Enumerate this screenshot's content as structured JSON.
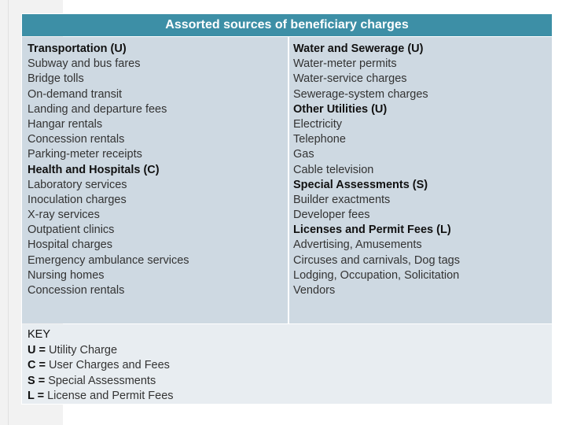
{
  "header": {
    "title": "Assorted sources of beneficiary charges"
  },
  "left_column": [
    {
      "text": "Transportation (U)",
      "heading": true
    },
    {
      "text": "Subway and bus fares",
      "heading": false
    },
    {
      "text": "Bridge tolls",
      "heading": false
    },
    {
      "text": "On-demand transit",
      "heading": false
    },
    {
      "text": "Landing and departure fees",
      "heading": false
    },
    {
      "text": "Hangar rentals",
      "heading": false
    },
    {
      "text": "Concession rentals",
      "heading": false
    },
    {
      "text": "Parking-meter receipts",
      "heading": false
    },
    {
      "text": "Health and Hospitals (C)",
      "heading": true
    },
    {
      "text": "Laboratory services",
      "heading": false
    },
    {
      "text": "Inoculation charges",
      "heading": false
    },
    {
      "text": "X-ray services",
      "heading": false
    },
    {
      "text": "Outpatient clinics",
      "heading": false
    },
    {
      "text": "Hospital charges",
      "heading": false
    },
    {
      "text": "Emergency ambulance services",
      "heading": false
    },
    {
      "text": "Nursing homes",
      "heading": false
    },
    {
      "text": "Concession rentals",
      "heading": false
    }
  ],
  "right_column": [
    {
      "text": "Water and Sewerage (U)",
      "heading": true
    },
    {
      "text": "Water-meter permits",
      "heading": false
    },
    {
      "text": "Water-service charges",
      "heading": false
    },
    {
      "text": "Sewerage-system charges",
      "heading": false
    },
    {
      "text": "Other Utilities (U)",
      "heading": true
    },
    {
      "text": "Electricity",
      "heading": false
    },
    {
      "text": "Telephone",
      "heading": false
    },
    {
      "text": "Gas",
      "heading": false
    },
    {
      "text": "Cable television",
      "heading": false
    },
    {
      "text": "Special Assessments (S)",
      "heading": true
    },
    {
      "text": "Builder exactments",
      "heading": false
    },
    {
      "text": "Developer fees",
      "heading": false
    },
    {
      "text": "Licenses and Permit Fees (L)",
      "heading": true
    },
    {
      "text": "Advertising, Amusements",
      "heading": false
    },
    {
      "text": "Circuses and carnivals, Dog tags",
      "heading": false
    },
    {
      "text": "Lodging, Occupation, Solicitation",
      "heading": false
    },
    {
      "text": "Vendors",
      "heading": false
    }
  ],
  "key": {
    "title": "KEY",
    "entries": [
      {
        "code": "U =",
        "label": " Utility Charge"
      },
      {
        "code": "C =",
        "label": " User Charges and Fees"
      },
      {
        "code": "S =",
        "label": " Special Assessments"
      },
      {
        "code": "L =",
        "label": " License and Permit Fees"
      }
    ]
  }
}
